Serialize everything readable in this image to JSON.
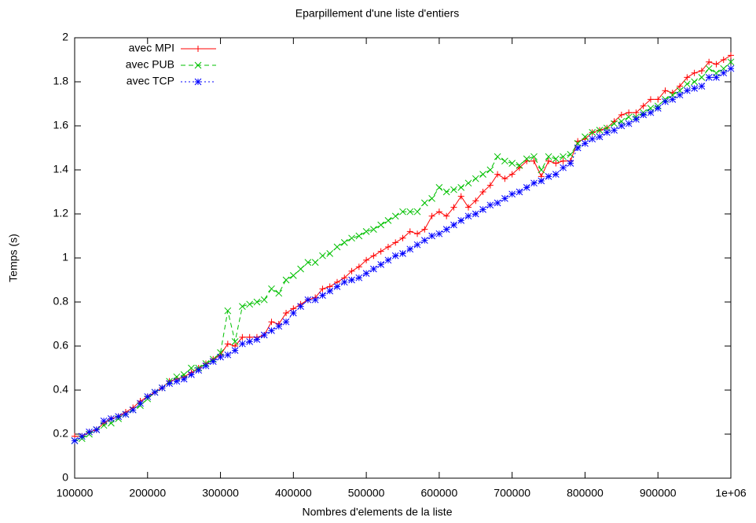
{
  "chart_data": {
    "type": "line",
    "title": "Eparpillement d'une liste d'entiers",
    "x_label": "Nombres d'elements de la liste",
    "y_label": "Temps (s)",
    "x": [
      100000,
      110000,
      120000,
      130000,
      140000,
      150000,
      160000,
      170000,
      180000,
      190000,
      200000,
      210000,
      220000,
      230000,
      240000,
      250000,
      260000,
      270000,
      280000,
      290000,
      300000,
      310000,
      320000,
      330000,
      340000,
      350000,
      360000,
      370000,
      380000,
      390000,
      400000,
      410000,
      420000,
      430000,
      440000,
      450000,
      460000,
      470000,
      480000,
      490000,
      500000,
      510000,
      520000,
      530000,
      540000,
      550000,
      560000,
      570000,
      580000,
      590000,
      600000,
      610000,
      620000,
      630000,
      640000,
      650000,
      660000,
      670000,
      680000,
      690000,
      700000,
      710000,
      720000,
      730000,
      740000,
      750000,
      760000,
      770000,
      780000,
      790000,
      800000,
      810000,
      820000,
      830000,
      840000,
      850000,
      860000,
      870000,
      880000,
      890000,
      900000,
      910000,
      920000,
      930000,
      940000,
      950000,
      960000,
      970000,
      980000,
      990000,
      1000000
    ],
    "series": [
      {
        "name": "avec MPI",
        "color": "#ff0000",
        "marker": "plus",
        "dash": "solid",
        "values": [
          0.19,
          0.19,
          0.21,
          0.22,
          0.25,
          0.27,
          0.28,
          0.3,
          0.32,
          0.35,
          0.37,
          0.39,
          0.41,
          0.44,
          0.45,
          0.46,
          0.48,
          0.5,
          0.52,
          0.54,
          0.56,
          0.61,
          0.6,
          0.64,
          0.64,
          0.64,
          0.65,
          0.71,
          0.7,
          0.75,
          0.77,
          0.79,
          0.81,
          0.82,
          0.86,
          0.87,
          0.89,
          0.91,
          0.94,
          0.96,
          0.99,
          1.01,
          1.03,
          1.05,
          1.07,
          1.09,
          1.12,
          1.11,
          1.13,
          1.19,
          1.21,
          1.19,
          1.23,
          1.28,
          1.23,
          1.26,
          1.3,
          1.33,
          1.38,
          1.36,
          1.38,
          1.41,
          1.44,
          1.44,
          1.37,
          1.44,
          1.43,
          1.44,
          1.44,
          1.53,
          1.54,
          1.57,
          1.58,
          1.59,
          1.62,
          1.65,
          1.66,
          1.66,
          1.69,
          1.72,
          1.72,
          1.76,
          1.75,
          1.78,
          1.82,
          1.84,
          1.85,
          1.89,
          1.88,
          1.9,
          1.92
        ]
      },
      {
        "name": "avec PUB",
        "color": "#00c000",
        "marker": "cross",
        "dash": "dashed",
        "values": [
          0.17,
          0.18,
          0.2,
          0.22,
          0.24,
          0.25,
          0.27,
          0.29,
          0.31,
          0.33,
          0.36,
          0.39,
          0.41,
          0.44,
          0.46,
          0.47,
          0.5,
          0.5,
          0.52,
          0.54,
          0.57,
          0.76,
          0.62,
          0.78,
          0.79,
          0.8,
          0.81,
          0.86,
          0.84,
          0.9,
          0.92,
          0.95,
          0.98,
          0.98,
          1.01,
          1.02,
          1.05,
          1.07,
          1.09,
          1.1,
          1.12,
          1.13,
          1.15,
          1.17,
          1.19,
          1.21,
          1.21,
          1.21,
          1.25,
          1.27,
          1.32,
          1.3,
          1.31,
          1.32,
          1.34,
          1.36,
          1.38,
          1.4,
          1.46,
          1.44,
          1.43,
          1.42,
          1.45,
          1.46,
          1.4,
          1.46,
          1.45,
          1.46,
          1.47,
          1.52,
          1.55,
          1.57,
          1.58,
          1.59,
          1.61,
          1.62,
          1.64,
          1.64,
          1.66,
          1.68,
          1.69,
          1.72,
          1.74,
          1.76,
          1.79,
          1.8,
          1.82,
          1.86,
          1.84,
          1.86,
          1.89
        ]
      },
      {
        "name": "avec TCP",
        "color": "#0000ff",
        "marker": "star",
        "dash": "dotted",
        "values": [
          0.17,
          0.19,
          0.21,
          0.22,
          0.26,
          0.27,
          0.28,
          0.29,
          0.31,
          0.34,
          0.37,
          0.39,
          0.41,
          0.43,
          0.44,
          0.45,
          0.47,
          0.49,
          0.51,
          0.53,
          0.55,
          0.56,
          0.58,
          0.61,
          0.62,
          0.63,
          0.65,
          0.67,
          0.69,
          0.71,
          0.75,
          0.78,
          0.81,
          0.81,
          0.83,
          0.85,
          0.87,
          0.89,
          0.9,
          0.91,
          0.93,
          0.95,
          0.97,
          0.99,
          1.01,
          1.02,
          1.04,
          1.06,
          1.08,
          1.1,
          1.11,
          1.13,
          1.15,
          1.17,
          1.19,
          1.2,
          1.22,
          1.24,
          1.25,
          1.27,
          1.29,
          1.3,
          1.32,
          1.34,
          1.35,
          1.37,
          1.38,
          1.41,
          1.43,
          1.5,
          1.52,
          1.54,
          1.55,
          1.57,
          1.58,
          1.6,
          1.61,
          1.63,
          1.65,
          1.66,
          1.68,
          1.71,
          1.72,
          1.74,
          1.76,
          1.77,
          1.78,
          1.82,
          1.82,
          1.84,
          1.86
        ]
      }
    ],
    "xlim": [
      100000,
      1000000
    ],
    "xticks": [
      100000,
      200000,
      300000,
      400000,
      500000,
      600000,
      700000,
      800000,
      900000,
      {
        "value": 1000000,
        "label": "1e+06"
      }
    ],
    "ylim": [
      0,
      2
    ],
    "yticks": [
      0,
      0.2,
      0.4,
      0.6,
      0.8,
      1,
      1.2,
      1.4,
      1.6,
      1.8,
      2
    ],
    "legend": "top-left"
  }
}
